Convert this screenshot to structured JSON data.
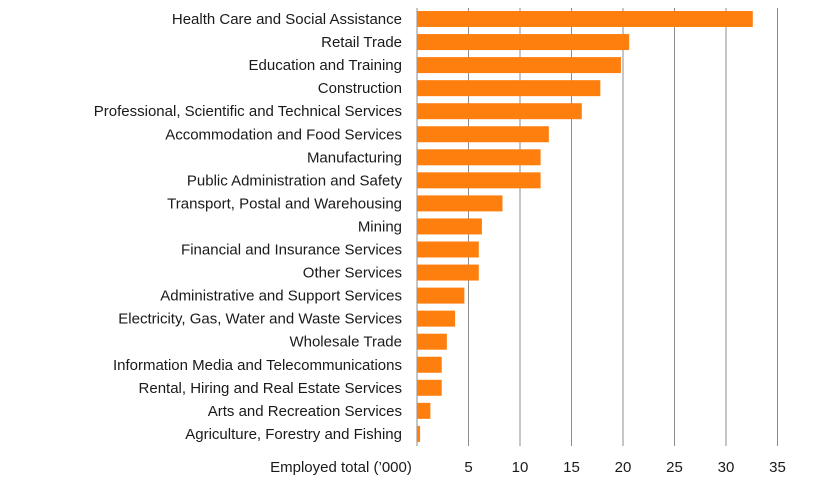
{
  "chart_data": {
    "type": "bar",
    "orientation": "horizontal",
    "categories": [
      "Health Care and Social Assistance",
      "Retail Trade",
      "Education and Training",
      "Construction",
      "Professional, Scientific and Technical Services",
      "Accommodation and Food Services",
      "Manufacturing",
      "Public Administration and Safety",
      "Transport, Postal and Warehousing",
      "Mining",
      "Financial and Insurance Services",
      "Other Services",
      "Administrative and Support Services",
      "Electricity, Gas, Water and Waste Services",
      "Wholesale Trade",
      "Information Media and Telecommunications",
      "Rental, Hiring and Real Estate Services",
      "Arts and Recreation Services",
      "Agriculture, Forestry and Fishing"
    ],
    "values": [
      32.6,
      20.6,
      19.8,
      17.8,
      16.0,
      12.8,
      12.0,
      12.0,
      8.3,
      6.3,
      6.0,
      6.0,
      4.6,
      3.7,
      2.9,
      2.4,
      2.4,
      1.3,
      0.3
    ],
    "title": "",
    "xlabel": "Employed total (’000)",
    "ylabel": "",
    "xlim": [
      0,
      35
    ],
    "xticks": [
      5,
      10,
      15,
      20,
      25,
      30,
      35
    ],
    "grid": "vertical",
    "legend": "none",
    "bar_color": "#ff7f0e",
    "grid_color": "#8c8c8c"
  }
}
